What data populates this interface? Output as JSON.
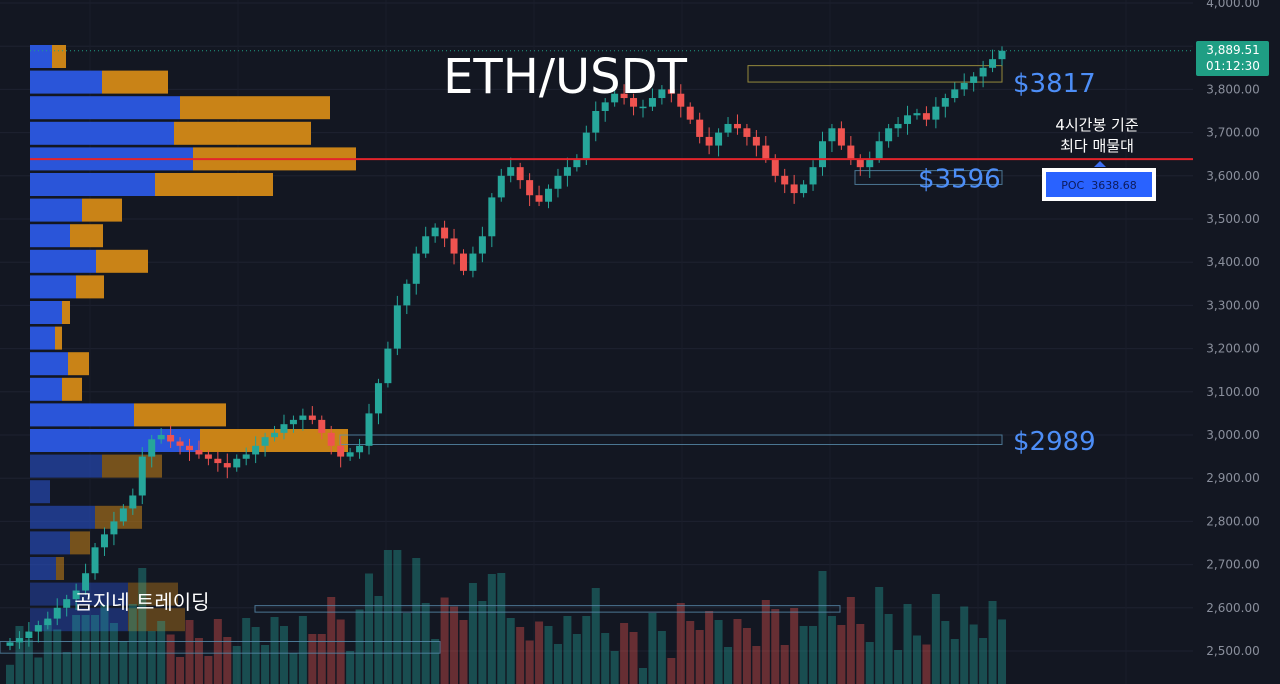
{
  "chart_data": {
    "type": "candlestick",
    "title": "ETH/USDT",
    "watermark": "곰지네 트레이딩",
    "price_axis": {
      "ylim": [
        2475,
        4010
      ],
      "ticks": [
        "4,000.00",
        "3,900.00",
        "3,800.00",
        "3,700.00",
        "3,600.00",
        "3,500.00",
        "3,400.00",
        "3,300.00",
        "3,200.00",
        "3,100.00",
        "3,000.00",
        "2,900.00",
        "2,800.00",
        "2,700.00",
        "2,600.00",
        "2,500.00"
      ],
      "tick_values": [
        4000,
        3900,
        3800,
        3700,
        3600,
        3500,
        3400,
        3300,
        3200,
        3100,
        3000,
        2900,
        2800,
        2700,
        2600,
        2500
      ]
    },
    "current_price": {
      "value": 3889.51,
      "label": "3,889.51",
      "countdown": "01:12:30"
    },
    "poc": {
      "value": 3638.68,
      "label": "POC  3638.68",
      "note_line1": "4시간봉 기준",
      "note_line2": "최다 매물대"
    },
    "levels": [
      {
        "label": "$3817",
        "value": 3817
      },
      {
        "label": "$3596",
        "value": 3596
      },
      {
        "label": "$2989",
        "value": 2989
      }
    ],
    "close_series": [
      2520,
      2530,
      2545,
      2560,
      2575,
      2600,
      2620,
      2640,
      2680,
      2740,
      2770,
      2800,
      2830,
      2860,
      2950,
      2990,
      3000,
      2985,
      2975,
      2965,
      2955,
      2945,
      2935,
      2925,
      2945,
      2955,
      2975,
      2995,
      3005,
      3025,
      3035,
      3045,
      3035,
      3005,
      2975,
      2950,
      2960,
      2975,
      3050,
      3120,
      3200,
      3300,
      3350,
      3420,
      3460,
      3480,
      3455,
      3420,
      3380,
      3420,
      3460,
      3550,
      3600,
      3620,
      3590,
      3555,
      3540,
      3570,
      3600,
      3620,
      3640,
      3700,
      3750,
      3770,
      3790,
      3780,
      3760,
      3760,
      3780,
      3800,
      3790,
      3760,
      3730,
      3690,
      3670,
      3700,
      3720,
      3710,
      3690,
      3670,
      3640,
      3600,
      3580,
      3560,
      3580,
      3620,
      3680,
      3710,
      3670,
      3640,
      3620,
      3640,
      3680,
      3710,
      3720,
      3740,
      3745,
      3730,
      3760,
      3780,
      3800,
      3815,
      3830,
      3850,
      3870,
      3889.51
    ],
    "colors": {
      "up": "#26a69a",
      "down": "#ef5350",
      "poc_line": "#e3242b",
      "level_text": "#4d8ef7",
      "profile_buy": "#2a55d9",
      "profile_sell": "#c98317",
      "price_tag": "#1f9e84"
    }
  }
}
